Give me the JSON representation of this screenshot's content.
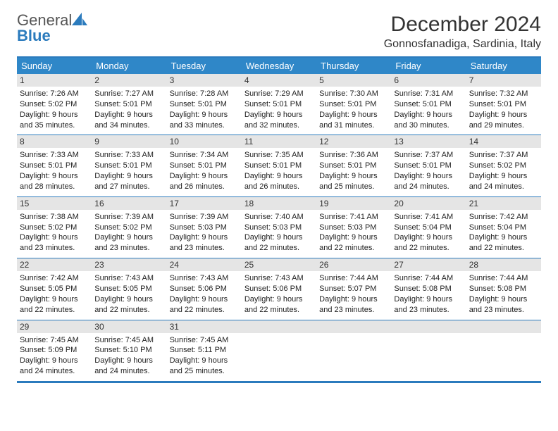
{
  "logo": {
    "word1": "General",
    "word2": "Blue",
    "icon_color": "#2b7bbd"
  },
  "header": {
    "title": "December 2024",
    "location": "Gonnosfanadiga, Sardinia, Italy"
  },
  "calendar": {
    "header_bg": "#2f87c8",
    "border_color": "#2b7bbd",
    "daynum_bg": "#e5e5e5",
    "day_names": [
      "Sunday",
      "Monday",
      "Tuesday",
      "Wednesday",
      "Thursday",
      "Friday",
      "Saturday"
    ],
    "weeks": [
      [
        {
          "n": "1",
          "sr": "Sunrise: 7:26 AM",
          "ss": "Sunset: 5:02 PM",
          "d1": "Daylight: 9 hours",
          "d2": "and 35 minutes."
        },
        {
          "n": "2",
          "sr": "Sunrise: 7:27 AM",
          "ss": "Sunset: 5:01 PM",
          "d1": "Daylight: 9 hours",
          "d2": "and 34 minutes."
        },
        {
          "n": "3",
          "sr": "Sunrise: 7:28 AM",
          "ss": "Sunset: 5:01 PM",
          "d1": "Daylight: 9 hours",
          "d2": "and 33 minutes."
        },
        {
          "n": "4",
          "sr": "Sunrise: 7:29 AM",
          "ss": "Sunset: 5:01 PM",
          "d1": "Daylight: 9 hours",
          "d2": "and 32 minutes."
        },
        {
          "n": "5",
          "sr": "Sunrise: 7:30 AM",
          "ss": "Sunset: 5:01 PM",
          "d1": "Daylight: 9 hours",
          "d2": "and 31 minutes."
        },
        {
          "n": "6",
          "sr": "Sunrise: 7:31 AM",
          "ss": "Sunset: 5:01 PM",
          "d1": "Daylight: 9 hours",
          "d2": "and 30 minutes."
        },
        {
          "n": "7",
          "sr": "Sunrise: 7:32 AM",
          "ss": "Sunset: 5:01 PM",
          "d1": "Daylight: 9 hours",
          "d2": "and 29 minutes."
        }
      ],
      [
        {
          "n": "8",
          "sr": "Sunrise: 7:33 AM",
          "ss": "Sunset: 5:01 PM",
          "d1": "Daylight: 9 hours",
          "d2": "and 28 minutes."
        },
        {
          "n": "9",
          "sr": "Sunrise: 7:33 AM",
          "ss": "Sunset: 5:01 PM",
          "d1": "Daylight: 9 hours",
          "d2": "and 27 minutes."
        },
        {
          "n": "10",
          "sr": "Sunrise: 7:34 AM",
          "ss": "Sunset: 5:01 PM",
          "d1": "Daylight: 9 hours",
          "d2": "and 26 minutes."
        },
        {
          "n": "11",
          "sr": "Sunrise: 7:35 AM",
          "ss": "Sunset: 5:01 PM",
          "d1": "Daylight: 9 hours",
          "d2": "and 26 minutes."
        },
        {
          "n": "12",
          "sr": "Sunrise: 7:36 AM",
          "ss": "Sunset: 5:01 PM",
          "d1": "Daylight: 9 hours",
          "d2": "and 25 minutes."
        },
        {
          "n": "13",
          "sr": "Sunrise: 7:37 AM",
          "ss": "Sunset: 5:01 PM",
          "d1": "Daylight: 9 hours",
          "d2": "and 24 minutes."
        },
        {
          "n": "14",
          "sr": "Sunrise: 7:37 AM",
          "ss": "Sunset: 5:02 PM",
          "d1": "Daylight: 9 hours",
          "d2": "and 24 minutes."
        }
      ],
      [
        {
          "n": "15",
          "sr": "Sunrise: 7:38 AM",
          "ss": "Sunset: 5:02 PM",
          "d1": "Daylight: 9 hours",
          "d2": "and 23 minutes."
        },
        {
          "n": "16",
          "sr": "Sunrise: 7:39 AM",
          "ss": "Sunset: 5:02 PM",
          "d1": "Daylight: 9 hours",
          "d2": "and 23 minutes."
        },
        {
          "n": "17",
          "sr": "Sunrise: 7:39 AM",
          "ss": "Sunset: 5:03 PM",
          "d1": "Daylight: 9 hours",
          "d2": "and 23 minutes."
        },
        {
          "n": "18",
          "sr": "Sunrise: 7:40 AM",
          "ss": "Sunset: 5:03 PM",
          "d1": "Daylight: 9 hours",
          "d2": "and 22 minutes."
        },
        {
          "n": "19",
          "sr": "Sunrise: 7:41 AM",
          "ss": "Sunset: 5:03 PM",
          "d1": "Daylight: 9 hours",
          "d2": "and 22 minutes."
        },
        {
          "n": "20",
          "sr": "Sunrise: 7:41 AM",
          "ss": "Sunset: 5:04 PM",
          "d1": "Daylight: 9 hours",
          "d2": "and 22 minutes."
        },
        {
          "n": "21",
          "sr": "Sunrise: 7:42 AM",
          "ss": "Sunset: 5:04 PM",
          "d1": "Daylight: 9 hours",
          "d2": "and 22 minutes."
        }
      ],
      [
        {
          "n": "22",
          "sr": "Sunrise: 7:42 AM",
          "ss": "Sunset: 5:05 PM",
          "d1": "Daylight: 9 hours",
          "d2": "and 22 minutes."
        },
        {
          "n": "23",
          "sr": "Sunrise: 7:43 AM",
          "ss": "Sunset: 5:05 PM",
          "d1": "Daylight: 9 hours",
          "d2": "and 22 minutes."
        },
        {
          "n": "24",
          "sr": "Sunrise: 7:43 AM",
          "ss": "Sunset: 5:06 PM",
          "d1": "Daylight: 9 hours",
          "d2": "and 22 minutes."
        },
        {
          "n": "25",
          "sr": "Sunrise: 7:43 AM",
          "ss": "Sunset: 5:06 PM",
          "d1": "Daylight: 9 hours",
          "d2": "and 22 minutes."
        },
        {
          "n": "26",
          "sr": "Sunrise: 7:44 AM",
          "ss": "Sunset: 5:07 PM",
          "d1": "Daylight: 9 hours",
          "d2": "and 23 minutes."
        },
        {
          "n": "27",
          "sr": "Sunrise: 7:44 AM",
          "ss": "Sunset: 5:08 PM",
          "d1": "Daylight: 9 hours",
          "d2": "and 23 minutes."
        },
        {
          "n": "28",
          "sr": "Sunrise: 7:44 AM",
          "ss": "Sunset: 5:08 PM",
          "d1": "Daylight: 9 hours",
          "d2": "and 23 minutes."
        }
      ],
      [
        {
          "n": "29",
          "sr": "Sunrise: 7:45 AM",
          "ss": "Sunset: 5:09 PM",
          "d1": "Daylight: 9 hours",
          "d2": "and 24 minutes."
        },
        {
          "n": "30",
          "sr": "Sunrise: 7:45 AM",
          "ss": "Sunset: 5:10 PM",
          "d1": "Daylight: 9 hours",
          "d2": "and 24 minutes."
        },
        {
          "n": "31",
          "sr": "Sunrise: 7:45 AM",
          "ss": "Sunset: 5:11 PM",
          "d1": "Daylight: 9 hours",
          "d2": "and 25 minutes."
        },
        null,
        null,
        null,
        null
      ]
    ]
  }
}
